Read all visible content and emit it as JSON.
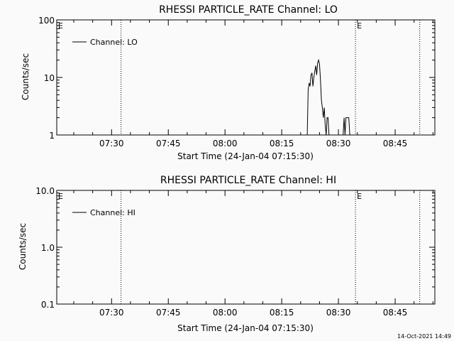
{
  "timestamp": "14-Oct-2021 14:49",
  "chart_data": [
    {
      "type": "line",
      "title": "RHESSI PARTICLE_RATE Channel: LO",
      "xlabel": "Start Time (24-Jan-04 07:15:30)",
      "ylabel": "Counts/sec",
      "yscale": "log",
      "ylim": [
        1,
        100
      ],
      "ytick_values": [
        1,
        10,
        100
      ],
      "ytick_labels": [
        "1",
        "10",
        "100"
      ],
      "xlim": [
        "07:15:30",
        "08:55:30"
      ],
      "xtick_labels": [
        "07:30",
        "07:45",
        "08:00",
        "08:15",
        "08:30",
        "08:45"
      ],
      "xtick_values": [
        "07:30",
        "07:45",
        "08:00",
        "08:15",
        "08:30",
        "08:45"
      ],
      "event_markers": [
        {
          "time": "07:32:30",
          "label": "E"
        },
        {
          "time": "08:34:30",
          "label": "E"
        },
        {
          "time": "08:51:30",
          "label": ""
        }
      ],
      "legend": {
        "position": "top-left",
        "entries": [
          "Channel: LO"
        ]
      },
      "series": [
        {
          "name": "Channel: LO",
          "segments": [
            {
              "x": [
                "08:21:45",
                "08:22:00",
                "08:22:15",
                "08:22:30",
                "08:22:45",
                "08:23:00",
                "08:23:15",
                "08:23:30",
                "08:23:45",
                "08:24:00",
                "08:24:15",
                "08:24:30",
                "08:24:45",
                "08:25:00",
                "08:25:15",
                "08:25:30",
                "08:25:45",
                "08:26:00",
                "08:26:15",
                "08:26:30",
                "08:26:45",
                "08:27:00",
                "08:27:15",
                "08:27:30",
                "08:27:45",
                "08:28:00"
              ],
              "y": [
                1,
                6,
                8,
                7,
                11,
                12,
                7,
                10,
                13,
                16,
                11,
                18,
                20,
                17,
                9,
                4,
                3,
                2,
                3,
                1.5,
                1,
                2,
                2,
                1,
                1,
                1
              ]
            },
            {
              "x": [
                "08:31:15",
                "08:31:30",
                "08:31:45",
                "08:32:00",
                "08:32:15",
                "08:32:30",
                "08:32:45",
                "08:33:00"
              ],
              "y": [
                1,
                2,
                1,
                2,
                2,
                2,
                2,
                1
              ]
            }
          ]
        }
      ]
    },
    {
      "type": "line",
      "title": "RHESSI PARTICLE_RATE Channel: HI",
      "xlabel": "Start Time (24-Jan-04 07:15:30)",
      "ylabel": "Counts/sec",
      "yscale": "log",
      "ylim": [
        0.1,
        10
      ],
      "ytick_values": [
        0.1,
        1,
        10
      ],
      "ytick_labels": [
        "0.1",
        "1.0",
        "10.0"
      ],
      "xlim": [
        "07:15:30",
        "08:55:30"
      ],
      "xtick_labels": [
        "07:30",
        "07:45",
        "08:00",
        "08:15",
        "08:30",
        "08:45"
      ],
      "xtick_values": [
        "07:30",
        "07:45",
        "08:00",
        "08:15",
        "08:30",
        "08:45"
      ],
      "event_markers": [
        {
          "time": "07:32:30",
          "label": "E"
        },
        {
          "time": "08:34:30",
          "label": "E"
        },
        {
          "time": "08:51:30",
          "label": ""
        }
      ],
      "legend": {
        "position": "top-left",
        "entries": [
          "Channel: HI"
        ]
      },
      "series": [
        {
          "name": "Channel: HI",
          "segments": []
        }
      ]
    }
  ]
}
